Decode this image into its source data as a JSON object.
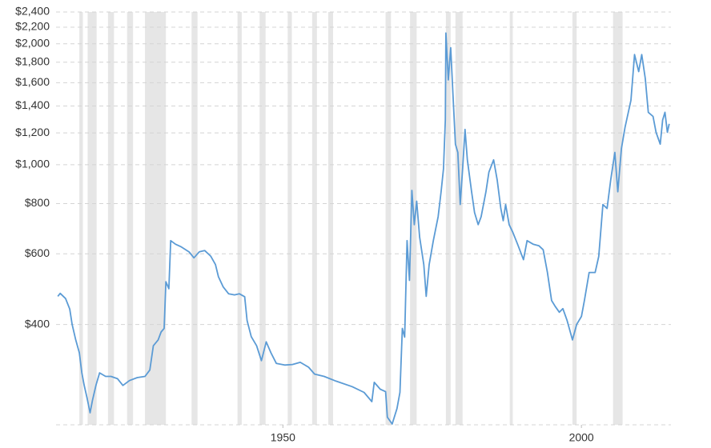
{
  "chart_data": {
    "type": "line",
    "log_y": true,
    "grid": true,
    "xlim": [
      1912,
      2015
    ],
    "xticks": [
      1950,
      2000
    ],
    "ylim": [
      225,
      2400
    ],
    "yticks": [
      {
        "value": 400,
        "label": "$400"
      },
      {
        "value": 600,
        "label": "$600"
      },
      {
        "value": 800,
        "label": "$800"
      },
      {
        "value": 1000,
        "label": "$1,000"
      },
      {
        "value": 1200,
        "label": "$1,200"
      },
      {
        "value": 1400,
        "label": "$1,400"
      },
      {
        "value": 1600,
        "label": "$1,600"
      },
      {
        "value": 1800,
        "label": "$1,800"
      },
      {
        "value": 2000,
        "label": "$2,000"
      },
      {
        "value": 2200,
        "label": "$2,200"
      },
      {
        "value": 2400,
        "label": "$2,400"
      }
    ],
    "recession_color": "#e6e6e6",
    "recessions": [
      [
        1915.9,
        1916.5
      ],
      [
        1917.3,
        1918.8
      ],
      [
        1920.7,
        1921.7
      ],
      [
        1923.9,
        1924.9
      ],
      [
        1926.9,
        1930.4
      ],
      [
        1934.7,
        1935.7
      ],
      [
        1942.4,
        1943.1
      ],
      [
        1946.1,
        1947.1
      ],
      [
        1950.8,
        1951.5
      ],
      [
        1954.9,
        1955.7
      ],
      [
        1957.6,
        1958.4
      ],
      [
        1967.2,
        1968.1
      ],
      [
        1971.3,
        1972.4
      ],
      [
        1977.3,
        1978.1
      ],
      [
        1978.9,
        1980.1
      ],
      [
        1988.0,
        1988.5
      ],
      [
        1998.5,
        1999.2
      ],
      [
        2005.3,
        2006.9
      ]
    ],
    "series": [
      {
        "color": "#5b9bd5",
        "x": [
          1912.3,
          1912.7,
          1913.6,
          1914.3,
          1914.7,
          1915.3,
          1915.9,
          1916.3,
          1916.7,
          1917.2,
          1917.7,
          1918.1,
          1918.7,
          1919.3,
          1920.3,
          1921.2,
          1922.3,
          1923.2,
          1924.3,
          1925.6,
          1926.9,
          1927.7,
          1928.3,
          1929.1,
          1929.6,
          1930.1,
          1930.4,
          1930.9,
          1931.2,
          1932.0,
          1932.9,
          1934.3,
          1935.1,
          1936.0,
          1936.9,
          1937.9,
          1938.7,
          1939.2,
          1940.0,
          1940.9,
          1941.9,
          1942.7,
          1943.6,
          1944.0,
          1944.7,
          1945.6,
          1946.4,
          1947.2,
          1948.0,
          1948.9,
          1950.3,
          1951.6,
          1952.9,
          1954.3,
          1955.3,
          1956.9,
          1958.9,
          1961.6,
          1963.6,
          1964.9,
          1965.3,
          1966.3,
          1967.2,
          1967.5,
          1968.3,
          1969.1,
          1969.6,
          1970.0,
          1970.4,
          1970.8,
          1971.2,
          1971.6,
          1972.0,
          1972.4,
          1972.9,
          1973.6,
          1974.0,
          1974.5,
          1975.2,
          1976.0,
          1976.5,
          1976.9,
          1977.2,
          1977.3,
          1977.7,
          1978.1,
          1978.5,
          1978.9,
          1979.3,
          1979.7,
          1980.1,
          1980.5,
          1980.9,
          1981.6,
          1982.1,
          1982.7,
          1983.2,
          1984.0,
          1984.5,
          1985.3,
          1985.9,
          1986.5,
          1986.9,
          1987.3,
          1987.9,
          1988.5,
          1989.3,
          1990.3,
          1990.9,
          1991.9,
          1992.9,
          1993.6,
          1994.3,
          1995.0,
          1995.6,
          1996.3,
          1996.9,
          1997.6,
          1998.5,
          1999.2,
          2000.0,
          2000.5,
          2001.3,
          2002.3,
          2002.9,
          2003.6,
          2004.3,
          2004.9,
          2005.6,
          2006.1,
          2006.7,
          2007.3,
          2008.3,
          2008.9,
          2009.6,
          2010.1,
          2010.7,
          2011.2,
          2012.0,
          2012.5,
          2013.2,
          2013.6,
          2014.0,
          2014.4,
          2014.7
        ],
        "values": [
          470,
          478,
          464,
          437,
          400,
          366,
          340,
          304,
          283,
          262,
          241,
          259,
          283,
          303,
          297,
          297,
          293,
          282,
          290,
          295,
          297,
          308,
          354,
          366,
          383,
          391,
          511,
          491,
          647,
          634,
          625,
          606,
          586,
          607,
          611,
          592,
          564,
          526,
          496,
          477,
          474,
          477,
          469,
          409,
          373,
          354,
          325,
          362,
          340,
          320,
          317,
          318,
          322,
          313,
          301,
          297,
          289,
          280,
          271,
          257,
          287,
          276,
          272,
          235,
          226,
          247,
          271,
          391,
          372,
          647,
          515,
          863,
          709,
          811,
          660,
          564,
          470,
          564,
          647,
          742,
          856,
          977,
          1292,
          2127,
          1626,
          1955,
          1485,
          1125,
          1073,
          796,
          977,
          1224,
          1028,
          856,
          760,
          709,
          742,
          856,
          958,
          1028,
          915,
          778,
          725,
          796,
          709,
          679,
          634,
          580,
          647,
          634,
          628,
          614,
          539,
          459,
          444,
          429,
          438,
          409,
          366,
          400,
          419,
          459,
          539,
          539,
          591,
          796,
          778,
          915,
          1073,
          856,
          1096,
          1238,
          1446,
          1880,
          1705,
          1880,
          1640,
          1350,
          1319,
          1204,
          1125,
          1292,
          1350,
          1204,
          1264
        ]
      }
    ]
  }
}
